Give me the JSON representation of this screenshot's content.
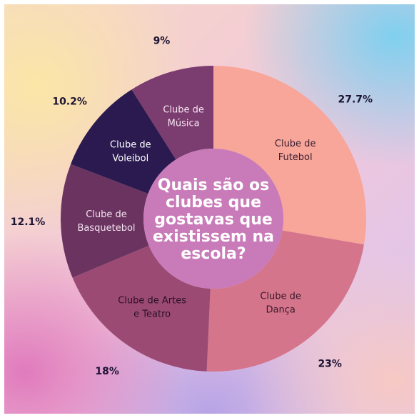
{
  "chart_data": {
    "type": "pie",
    "title": "Quais são os clubes que gostavas que existissem na escola?",
    "title_lines": [
      "Quais são os",
      "clubes que",
      "gostavas que",
      "existissem na",
      "escola?"
    ],
    "slices": [
      {
        "label_lines": [
          "Clube de",
          "Futebol"
        ],
        "value": 27.7,
        "display": "27.7%",
        "color": "#f8a59a",
        "text_color": "#3a2030"
      },
      {
        "label_lines": [
          "Clube de",
          "Dança"
        ],
        "value": 23,
        "display": "23%",
        "color": "#d4758c",
        "text_color": "#3a1828"
      },
      {
        "label_lines": [
          "Clube de Artes",
          "e Teatro"
        ],
        "value": 18,
        "display": "18%",
        "color": "#9b4a74",
        "text_color": "#2a0f24"
      },
      {
        "label_lines": [
          "Clube de",
          "Basquetebol"
        ],
        "value": 12.1,
        "display": "12.1%",
        "color": "#6b3460",
        "text_color": "#f3e3f0"
      },
      {
        "label_lines": [
          "Clube de",
          "Voleibol"
        ],
        "value": 10.2,
        "display": "10.2%",
        "color": "#2a1a4f",
        "text_color": "#ffffff"
      },
      {
        "label_lines": [
          "Clube de",
          "Música"
        ],
        "value": 9,
        "display": "9%",
        "color": "#7b3c70",
        "text_color": "#f6e6f2"
      }
    ],
    "center_color": "#c97bb9",
    "legend": "none"
  }
}
